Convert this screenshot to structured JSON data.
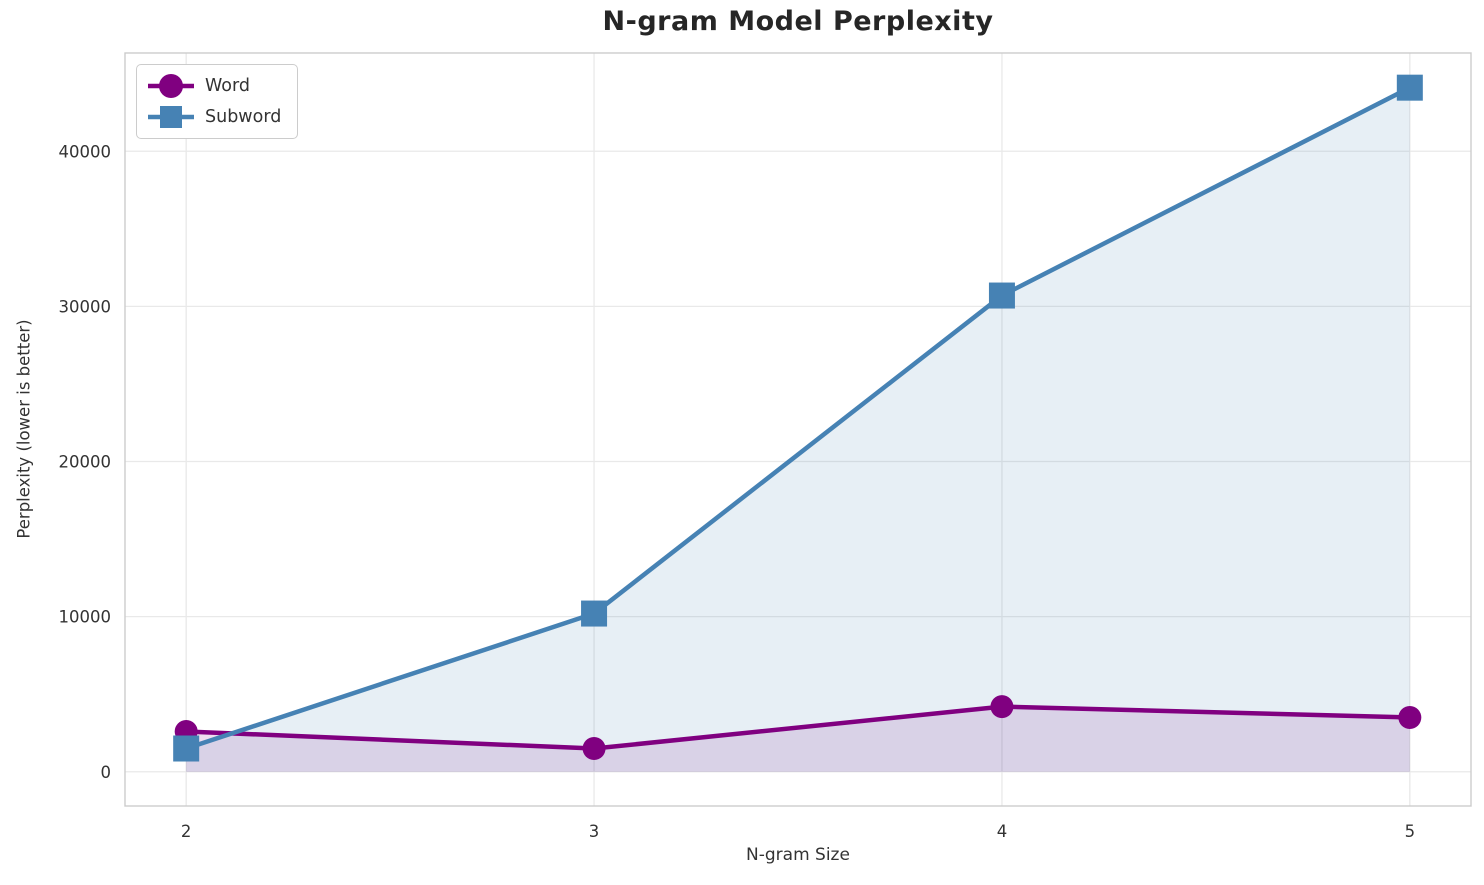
{
  "chart_data": {
    "type": "line",
    "title": "N-gram Model Perplexity",
    "xlabel": "N-gram Size",
    "ylabel": "Perplexity (lower is better)",
    "x": [
      2,
      3,
      4,
      5
    ],
    "series": [
      {
        "name": "Word",
        "marker": "circle",
        "color": "#800080",
        "values": [
          2600,
          1500,
          4200,
          3500
        ],
        "area": true
      },
      {
        "name": "Subword",
        "marker": "square",
        "color": "#4682B4",
        "values": [
          1500,
          10200,
          30700,
          44100
        ],
        "area": true
      }
    ],
    "xticks": [
      "2",
      "3",
      "4",
      "5"
    ],
    "xtick_values": [
      2,
      3,
      4,
      5
    ],
    "yticks": [
      "0",
      "10000",
      "20000",
      "30000",
      "40000"
    ],
    "ytick_values": [
      0,
      10000,
      20000,
      30000,
      40000
    ],
    "xlim": [
      1.85,
      5.15
    ],
    "ylim": [
      -2206,
      46335
    ],
    "grid": true,
    "legend_position": "upper left",
    "area_baseline": 0,
    "area_opacity": 0.13,
    "line_width": 4.5
  },
  "colors": {
    "word_series": "#800080",
    "subword_series": "#4682B4",
    "grid_line": "#e9e9e9",
    "spine": "#cccccc",
    "tick_text": "#333333",
    "title_text": "#262626",
    "legend_border": "#cccccc",
    "background": "#ffffff"
  }
}
